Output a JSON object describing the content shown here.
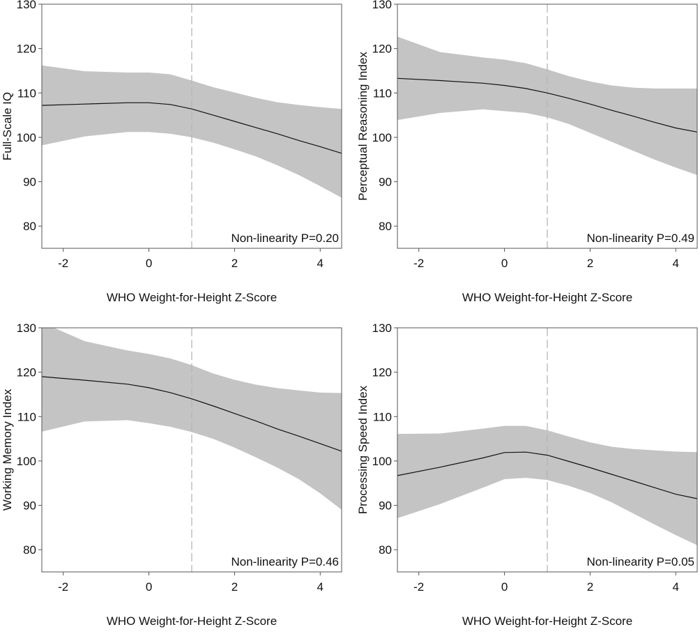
{
  "colors": {
    "band": "#c4c4c4",
    "line": "#111111",
    "axis": "#555555",
    "reference_line": "#b5b5b5",
    "text": "#111111"
  },
  "chart_data": [
    {
      "type": "line",
      "xlabel": "WHO Weight-for-Height Z-Score",
      "ylabel": "Full-Scale IQ",
      "annotation": "Non-linearity P=0.20",
      "xlim": [
        -2.5,
        4.5
      ],
      "ylim": [
        75,
        130
      ],
      "xticks": [
        -2,
        0,
        2,
        4
      ],
      "yticks": [
        80,
        90,
        100,
        110,
        120,
        130
      ],
      "reference_x": 1,
      "x": [
        -2.5,
        -1.5,
        -0.5,
        0,
        0.5,
        1,
        1.5,
        2,
        2.5,
        3,
        3.5,
        4,
        4.5
      ],
      "y": [
        107.2,
        107.5,
        107.8,
        107.8,
        107.4,
        106.4,
        105.0,
        103.6,
        102.2,
        100.8,
        99.3,
        97.9,
        96.4
      ],
      "lower": [
        98.2,
        100.2,
        101.2,
        101.2,
        100.8,
        100.0,
        98.8,
        97.3,
        95.7,
        93.7,
        91.5,
        89.0,
        86.4
      ],
      "upper": [
        116.2,
        114.9,
        114.6,
        114.6,
        114.2,
        112.8,
        111.3,
        110.1,
        108.9,
        107.9,
        107.3,
        106.8,
        106.4
      ],
      "grid": false
    },
    {
      "type": "line",
      "xlabel": "WHO Weight-for-Height Z-Score",
      "ylabel": "Perceptual Reasoning Index",
      "annotation": "Non-linearity P=0.49",
      "xlim": [
        -2.5,
        4.5
      ],
      "ylim": [
        75,
        130
      ],
      "xticks": [
        -2,
        0,
        2,
        4
      ],
      "yticks": [
        80,
        90,
        100,
        110,
        120,
        130
      ],
      "reference_x": 1,
      "x": [
        -2.5,
        -1.5,
        -0.5,
        0,
        0.5,
        1,
        1.5,
        2,
        2.5,
        3,
        3.5,
        4,
        4.5
      ],
      "y": [
        113.3,
        112.8,
        112.2,
        111.7,
        111.0,
        110.0,
        108.8,
        107.5,
        106.1,
        104.8,
        103.4,
        102.1,
        101.2
      ],
      "lower": [
        103.9,
        105.5,
        106.3,
        105.9,
        105.5,
        104.5,
        103.0,
        101.0,
        99.0,
        97.0,
        95.0,
        93.2,
        91.5
      ],
      "upper": [
        122.7,
        119.2,
        118.0,
        117.5,
        116.7,
        115.3,
        113.8,
        112.6,
        111.7,
        111.2,
        111.0,
        111.0,
        111.0
      ],
      "grid": false
    },
    {
      "type": "line",
      "xlabel": "WHO Weight-for-Height Z-Score",
      "ylabel": "Working Memory Index",
      "annotation": "Non-linearity P=0.46",
      "xlim": [
        -2.5,
        4.5
      ],
      "ylim": [
        75,
        130
      ],
      "xticks": [
        -2,
        0,
        2,
        4
      ],
      "yticks": [
        80,
        90,
        100,
        110,
        120,
        130
      ],
      "reference_x": 1,
      "x": [
        -2.5,
        -1.5,
        -0.5,
        0,
        0.5,
        1,
        1.5,
        2,
        2.5,
        3,
        3.5,
        4,
        4.5
      ],
      "y": [
        119.0,
        118.2,
        117.3,
        116.5,
        115.4,
        114.0,
        112.4,
        110.7,
        109.0,
        107.2,
        105.6,
        103.9,
        102.2
      ],
      "lower": [
        106.6,
        108.9,
        109.2,
        108.5,
        107.7,
        106.5,
        105.0,
        103.0,
        100.8,
        98.5,
        95.9,
        92.7,
        89.0
      ],
      "upper": [
        131.2,
        127.0,
        124.9,
        124.1,
        123.1,
        121.6,
        119.7,
        118.3,
        117.2,
        116.4,
        115.9,
        115.4,
        115.3
      ],
      "grid": false
    },
    {
      "type": "line",
      "xlabel": "WHO Weight-for-Height Z-Score",
      "ylabel": "Processing Speed Index",
      "annotation": "Non-linearity P=0.05",
      "xlim": [
        -2.5,
        4.5
      ],
      "ylim": [
        75,
        130
      ],
      "xticks": [
        -2,
        0,
        2,
        4
      ],
      "yticks": [
        80,
        90,
        100,
        110,
        120,
        130
      ],
      "reference_x": 1,
      "x": [
        -2.5,
        -1.5,
        -0.5,
        0,
        0.5,
        1,
        1.5,
        2,
        2.5,
        3,
        3.5,
        4,
        4.5
      ],
      "y": [
        96.7,
        98.6,
        100.7,
        101.9,
        102.0,
        101.3,
        99.9,
        98.5,
        97.0,
        95.5,
        94.0,
        92.5,
        91.5
      ],
      "lower": [
        87.1,
        90.3,
        94.0,
        95.9,
        96.2,
        95.7,
        94.4,
        92.8,
        90.7,
        88.2,
        85.7,
        83.3,
        81.0
      ],
      "upper": [
        106.1,
        106.2,
        107.3,
        107.9,
        107.9,
        106.9,
        105.5,
        104.2,
        103.2,
        102.7,
        102.4,
        102.1,
        102.0
      ],
      "grid": false
    }
  ]
}
